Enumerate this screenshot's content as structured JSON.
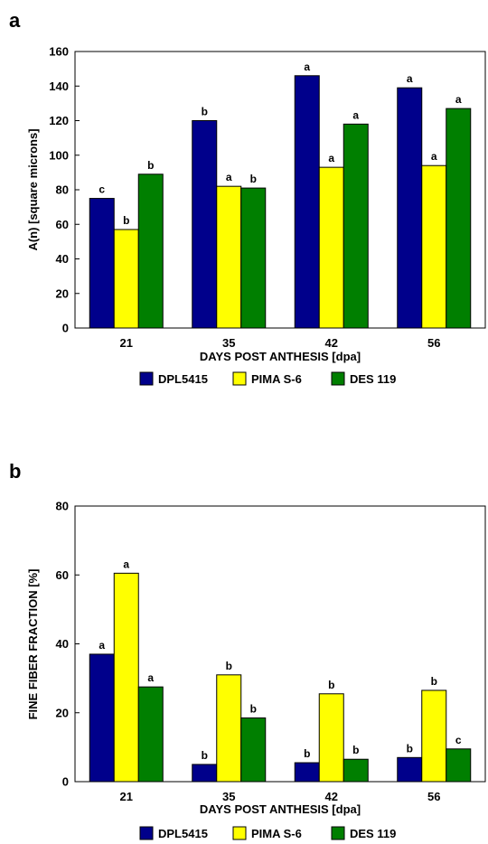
{
  "chart_data": [
    {
      "panel_label": "a",
      "type": "bar",
      "categories": [
        "21",
        "35",
        "42",
        "56"
      ],
      "xlabel": "DAYS POST ANTHESIS [dpa]",
      "ylabel": "A(n) [square microns]",
      "ylim": [
        0,
        160
      ],
      "yticks": [
        "0",
        "20",
        "40",
        "60",
        "80",
        "100",
        "120",
        "140",
        "160"
      ],
      "legend": "bottom",
      "series": [
        {
          "name": "DPL5415",
          "color": "#00008b",
          "values": [
            75,
            120,
            146,
            139
          ],
          "labels": [
            "c",
            "b",
            "a",
            "a"
          ]
        },
        {
          "name": "PIMA S-6",
          "color": "#ffff00",
          "values": [
            57,
            82,
            93,
            94
          ],
          "labels": [
            "b",
            "a",
            "a",
            "a"
          ]
        },
        {
          "name": "DES 119",
          "color": "#007f00",
          "values": [
            89,
            81,
            118,
            127
          ],
          "labels": [
            "b",
            "b",
            "a",
            "a"
          ]
        }
      ]
    },
    {
      "panel_label": "b",
      "type": "bar",
      "categories": [
        "21",
        "35",
        "42",
        "56"
      ],
      "xlabel": "DAYS POST ANTHESIS [dpa]",
      "ylabel": "FINE FIBER FRACTION [%]",
      "ylim": [
        0,
        80
      ],
      "yticks": [
        "0",
        "20",
        "40",
        "60",
        "80"
      ],
      "legend": "bottom",
      "series": [
        {
          "name": "DPL5415",
          "color": "#00008b",
          "values": [
            37,
            5,
            5.5,
            7
          ],
          "labels": [
            "a",
            "b",
            "b",
            "b"
          ]
        },
        {
          "name": "PIMA S-6",
          "color": "#ffff00",
          "values": [
            60.5,
            31,
            25.5,
            26.5
          ],
          "labels": [
            "a",
            "b",
            "b",
            "b"
          ]
        },
        {
          "name": "DES 119",
          "color": "#007f00",
          "values": [
            27.5,
            18.5,
            6.5,
            9.5
          ],
          "labels": [
            "a",
            "b",
            "b",
            "c"
          ]
        }
      ]
    }
  ]
}
